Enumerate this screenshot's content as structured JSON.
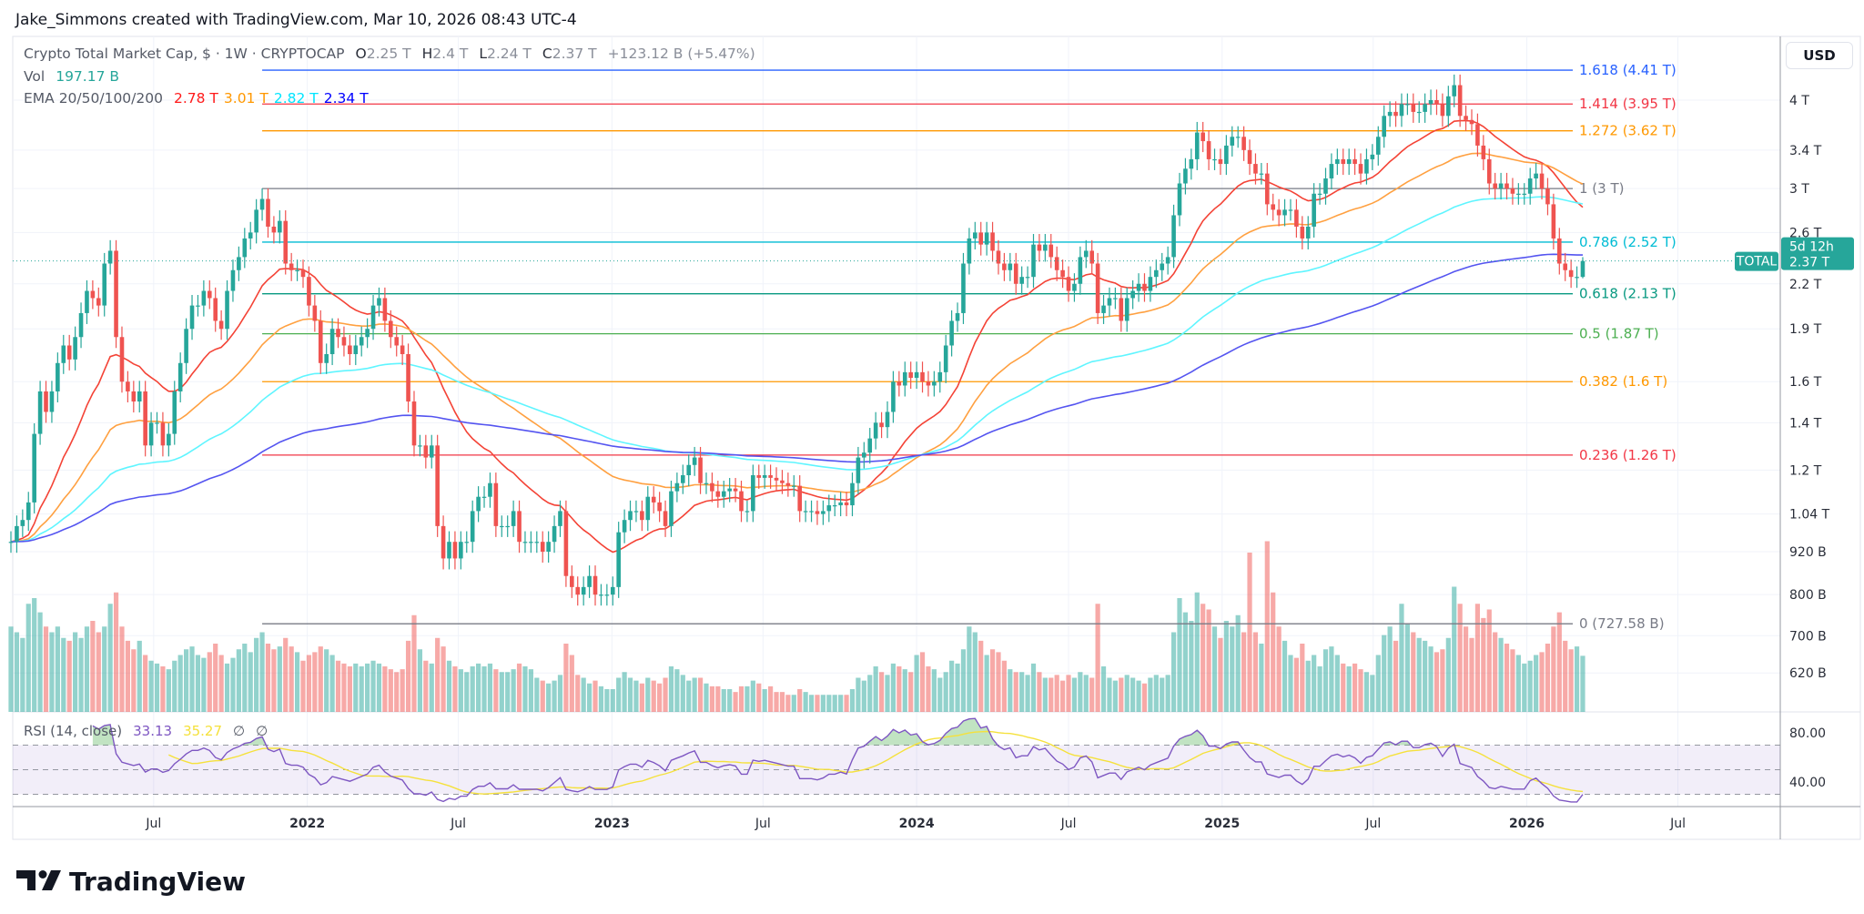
{
  "header": {
    "attribution": "Jake_Simmons created with TradingView.com, Mar 10, 2026 08:43 UTC-4"
  },
  "legend": {
    "symbol": "Crypto Total Market Cap, $ · 1W · CRYPTOCAP",
    "o_label": "O",
    "o": "2.25 T",
    "h_label": "H",
    "h": "2.4 T",
    "l_label": "L",
    "l": "2.24 T",
    "c_label": "C",
    "c": "2.37 T",
    "change": "+123.12 B (+5.47%)",
    "vol_label": "Vol",
    "vol": "197.17 B",
    "ema_label": "EMA 20/50/100/200",
    "ema20": "2.78 T",
    "ema50": "3.01 T",
    "ema100": "2.82 T",
    "ema200": "2.34 T"
  },
  "rsi_legend": {
    "label": "RSI (14, close)",
    "rsi": "33.13",
    "ma": "35.27",
    "v3": "∅",
    "v4": "∅"
  },
  "price_axis": {
    "currency": "USD",
    "badge_symbol": "TOTAL",
    "badge_price": "2.37 T",
    "badge_countdown": "5d 12h"
  },
  "brand": {
    "logo_text": "TradingView"
  },
  "colors": {
    "up": "#26a69a",
    "down": "#ef5350",
    "ema20": "#f44336",
    "ema50": "#ffa040",
    "ema100": "#5ff5ff",
    "ema200": "#5454f0",
    "ema20_text": "#ff1a1a",
    "ema50_text": "#ff9800",
    "ema100_text": "#00e5ff",
    "ema200_text": "#0000ff",
    "rsi": "#7e57c2",
    "rsi_ma": "#f5e13c",
    "vol_text": "#26a69a"
  },
  "chart_data": {
    "type": "candlestick",
    "interval": "1W",
    "x_start": "2021-01-11",
    "y_scale": "log",
    "y_unit": "T",
    "grid": true,
    "close": {
      "2021": [
        0.95,
        1.0,
        1.02,
        1.08,
        1.35,
        1.55,
        1.45,
        1.55,
        1.7,
        1.8,
        1.72,
        1.85,
        2.0,
        2.15,
        2.1,
        2.05,
        2.35,
        2.45,
        1.85,
        1.6,
        1.55,
        1.5,
        1.55,
        1.3,
        1.4,
        1.4,
        1.3,
        1.35,
        1.55,
        1.7,
        1.9,
        2.05,
        2.05,
        2.15,
        2.1,
        1.95,
        1.9,
        2.15,
        2.3,
        2.4,
        2.55,
        2.6,
        2.8,
        2.9,
        2.65,
        2.6,
        2.7,
        2.35,
        2.3,
        2.3,
        2.25
      ],
      "2022": [
        2.05,
        1.95,
        1.7,
        1.75,
        1.9,
        1.85,
        1.8,
        1.75,
        1.8,
        1.85,
        1.9,
        2.05,
        2.1,
        1.95,
        1.85,
        1.8,
        1.75,
        1.5,
        1.3,
        1.3,
        1.25,
        1.3,
        1.0,
        0.9,
        0.95,
        0.9,
        0.95,
        0.95,
        1.05,
        1.1,
        1.1,
        1.15,
        1.0,
        1.0,
        1.0,
        1.05,
        0.95,
        0.95,
        0.95,
        0.95,
        0.92,
        0.95,
        1.0,
        1.05,
        0.85,
        0.82,
        0.8,
        0.82,
        0.85,
        0.8,
        0.8,
        0.8
      ],
      "2023": [
        0.82,
        0.98,
        1.02,
        1.05,
        1.05,
        1.02,
        1.1,
        1.08,
        1.05,
        1.0,
        1.12,
        1.15,
        1.18,
        1.22,
        1.25,
        1.15,
        1.15,
        1.12,
        1.1,
        1.12,
        1.13,
        1.12,
        1.05,
        1.05,
        1.18,
        1.17,
        1.18,
        1.17,
        1.16,
        1.15,
        1.14,
        1.14,
        1.05,
        1.05,
        1.05,
        1.04,
        1.05,
        1.07,
        1.07,
        1.08,
        1.07,
        1.15,
        1.25,
        1.27,
        1.33,
        1.4,
        1.38,
        1.45,
        1.6,
        1.58,
        1.65,
        1.62
      ],
      "2024": [
        1.65,
        1.6,
        1.58,
        1.6,
        1.65,
        1.8,
        1.95,
        2.0,
        2.35,
        2.55,
        2.6,
        2.5,
        2.6,
        2.45,
        2.35,
        2.3,
        2.35,
        2.2,
        2.25,
        2.25,
        2.5,
        2.45,
        2.5,
        2.4,
        2.3,
        2.25,
        2.15,
        2.2,
        2.4,
        2.45,
        2.35,
        2.0,
        2.05,
        2.1,
        2.1,
        1.95,
        2.1,
        2.15,
        2.2,
        2.15,
        2.25,
        2.3,
        2.35,
        2.4,
        2.75,
        3.05,
        3.2,
        3.3,
        3.6,
        3.5,
        3.3,
        3.3,
        3.25
      ],
      "2025": [
        3.45,
        3.55,
        3.55,
        3.4,
        3.25,
        3.15,
        3.15,
        2.85,
        2.8,
        2.75,
        2.8,
        2.8,
        2.65,
        2.55,
        2.65,
        2.95,
        2.95,
        3.1,
        3.25,
        3.3,
        3.25,
        3.3,
        3.25,
        3.15,
        3.3,
        3.35,
        3.55,
        3.8,
        3.85,
        3.8,
        3.95,
        3.95,
        3.85,
        3.85,
        3.95,
        4.0,
        3.95,
        3.8,
        4.05,
        4.2,
        3.8,
        3.75,
        3.7,
        3.45,
        3.3,
        3.05,
        3.0,
        3.05,
        3.0,
        2.95,
        2.95,
        2.95
      ],
      "2026": [
        3.1,
        3.15,
        3.0,
        2.85,
        2.55,
        2.35,
        2.3,
        2.25,
        2.25,
        2.37
      ]
    },
    "volume_unit": "B",
    "volume": {
      "2021": [
        300,
        280,
        260,
        380,
        400,
        350,
        300,
        280,
        300,
        260,
        250,
        280,
        260,
        300,
        320,
        280,
        300,
        380,
        420,
        300,
        250,
        220,
        250,
        200,
        180,
        170,
        160,
        150,
        180,
        200,
        220,
        230,
        200,
        190,
        210,
        240,
        200,
        170,
        190,
        220,
        240,
        210,
        260,
        280,
        240,
        220,
        230,
        260,
        230,
        210,
        180
      ],
      "2022": [
        200,
        210,
        230,
        220,
        200,
        180,
        170,
        160,
        170,
        160,
        170,
        180,
        170,
        160,
        150,
        140,
        150,
        250,
        340,
        220,
        180,
        170,
        260,
        230,
        180,
        160,
        150,
        140,
        160,
        170,
        160,
        170,
        150,
        140,
        140,
        150,
        170,
        160,
        150,
        120,
        110,
        100,
        110,
        130,
        240,
        200,
        130,
        120,
        100,
        110,
        90,
        80
      ],
      "2023": [
        80,
        120,
        140,
        120,
        110,
        100,
        120,
        110,
        100,
        120,
        160,
        150,
        130,
        110,
        120,
        120,
        100,
        90,
        90,
        80,
        80,
        70,
        90,
        90,
        110,
        100,
        80,
        90,
        70,
        70,
        60,
        60,
        80,
        70,
        60,
        60,
        60,
        60,
        60,
        60,
        60,
        80,
        120,
        110,
        130,
        160,
        140,
        130,
        170,
        160,
        150,
        140
      ],
      "2024": [
        200,
        210,
        160,
        150,
        120,
        140,
        180,
        170,
        220,
        300,
        280,
        250,
        200,
        220,
        210,
        180,
        150,
        140,
        140,
        130,
        170,
        140,
        120,
        120,
        130,
        110,
        130,
        120,
        140,
        130,
        120,
        380,
        160,
        120,
        110,
        120,
        130,
        120,
        110,
        100,
        120,
        130,
        120,
        130,
        280,
        400,
        350,
        320,
        420,
        380,
        360,
        300,
        260
      ],
      "2025": [
        320,
        300,
        340,
        280,
        560,
        280,
        240,
        600,
        420,
        300,
        250,
        200,
        190,
        240,
        180,
        200,
        160,
        220,
        230,
        200,
        170,
        160,
        170,
        150,
        140,
        130,
        200,
        270,
        300,
        250,
        380,
        310,
        280,
        260,
        250,
        230,
        210,
        220,
        260,
        440,
        380,
        300,
        260,
        380,
        330,
        360,
        280,
        260,
        240,
        220,
        200,
        170
      ],
      "2026": [
        180,
        200,
        210,
        240,
        300,
        350,
        250,
        220,
        230,
        197.17
      ]
    },
    "last_candle": {
      "open": 2.25,
      "high": 2.4,
      "low": 2.24,
      "close": 2.37
    },
    "ema_periods": [
      20,
      50,
      100,
      200
    ],
    "fib_levels": [
      {
        "level": 1.618,
        "value": 4.41,
        "label": "1.618 (4.41 T)",
        "color": "#2962ff"
      },
      {
        "level": 1.414,
        "value": 3.95,
        "label": "1.414 (3.95 T)",
        "color": "#f23645"
      },
      {
        "level": 1.272,
        "value": 3.62,
        "label": "1.272 (3.62 T)",
        "color": "#ff9800"
      },
      {
        "level": 1,
        "value": 3.0,
        "label": "1 (3 T)",
        "color": "#787b86"
      },
      {
        "level": 0.786,
        "value": 2.52,
        "label": "0.786 (2.52 T)",
        "color": "#00bcd4"
      },
      {
        "level": 0.618,
        "value": 2.13,
        "label": "0.618 (2.13 T)",
        "color": "#089981"
      },
      {
        "level": 0.5,
        "value": 1.87,
        "label": "0.5 (1.87 T)",
        "color": "#4caf50"
      },
      {
        "level": 0.382,
        "value": 1.6,
        "label": "0.382 (1.6 T)",
        "color": "#ff9800"
      },
      {
        "level": 0.236,
        "value": 1.26,
        "label": "0.236 (1.26 T)",
        "color": "#f23645"
      },
      {
        "level": 0,
        "value": 0.72758,
        "label": "0 (727.58 B)",
        "color": "#787b86"
      }
    ],
    "fib_start": "2021-11-08",
    "yticks": [
      {
        "value": 4,
        "label": "4 T"
      },
      {
        "value": 3.4,
        "label": "3.4 T"
      },
      {
        "value": 3,
        "label": "3 T"
      },
      {
        "value": 2.6,
        "label": "2.6 T"
      },
      {
        "value": 2.2,
        "label": "2.2 T"
      },
      {
        "value": 1.9,
        "label": "1.9 T"
      },
      {
        "value": 1.6,
        "label": "1.6 T"
      },
      {
        "value": 1.4,
        "label": "1.4 T"
      },
      {
        "value": 1.2,
        "label": "1.2 T"
      },
      {
        "value": 1.04,
        "label": "1.04 T"
      },
      {
        "value": 0.92,
        "label": "920 B"
      },
      {
        "value": 0.8,
        "label": "800 B"
      },
      {
        "value": 0.7,
        "label": "700 B"
      },
      {
        "value": 0.62,
        "label": "620 B"
      }
    ],
    "xticks": [
      {
        "date": "2021-07-01",
        "label": "Jul",
        "year": false
      },
      {
        "date": "2022-01-01",
        "label": "2022",
        "year": true
      },
      {
        "date": "2022-07-01",
        "label": "Jul",
        "year": false
      },
      {
        "date": "2023-01-01",
        "label": "2023",
        "year": true
      },
      {
        "date": "2023-07-01",
        "label": "Jul",
        "year": false
      },
      {
        "date": "2024-01-01",
        "label": "2024",
        "year": true
      },
      {
        "date": "2024-07-01",
        "label": "Jul",
        "year": false
      },
      {
        "date": "2025-01-01",
        "label": "2025",
        "year": true
      },
      {
        "date": "2025-07-01",
        "label": "Jul",
        "year": false
      },
      {
        "date": "2026-01-01",
        "label": "2026",
        "year": true
      },
      {
        "date": "2026-07-01",
        "label": "Jul",
        "year": false
      }
    ],
    "rsi": {
      "period": 14,
      "ma_period": 14,
      "levels": [
        70,
        50,
        30
      ],
      "ticks": [
        {
          "value": 80,
          "label": "80.00"
        },
        {
          "value": 40,
          "label": "40.00"
        }
      ]
    }
  }
}
